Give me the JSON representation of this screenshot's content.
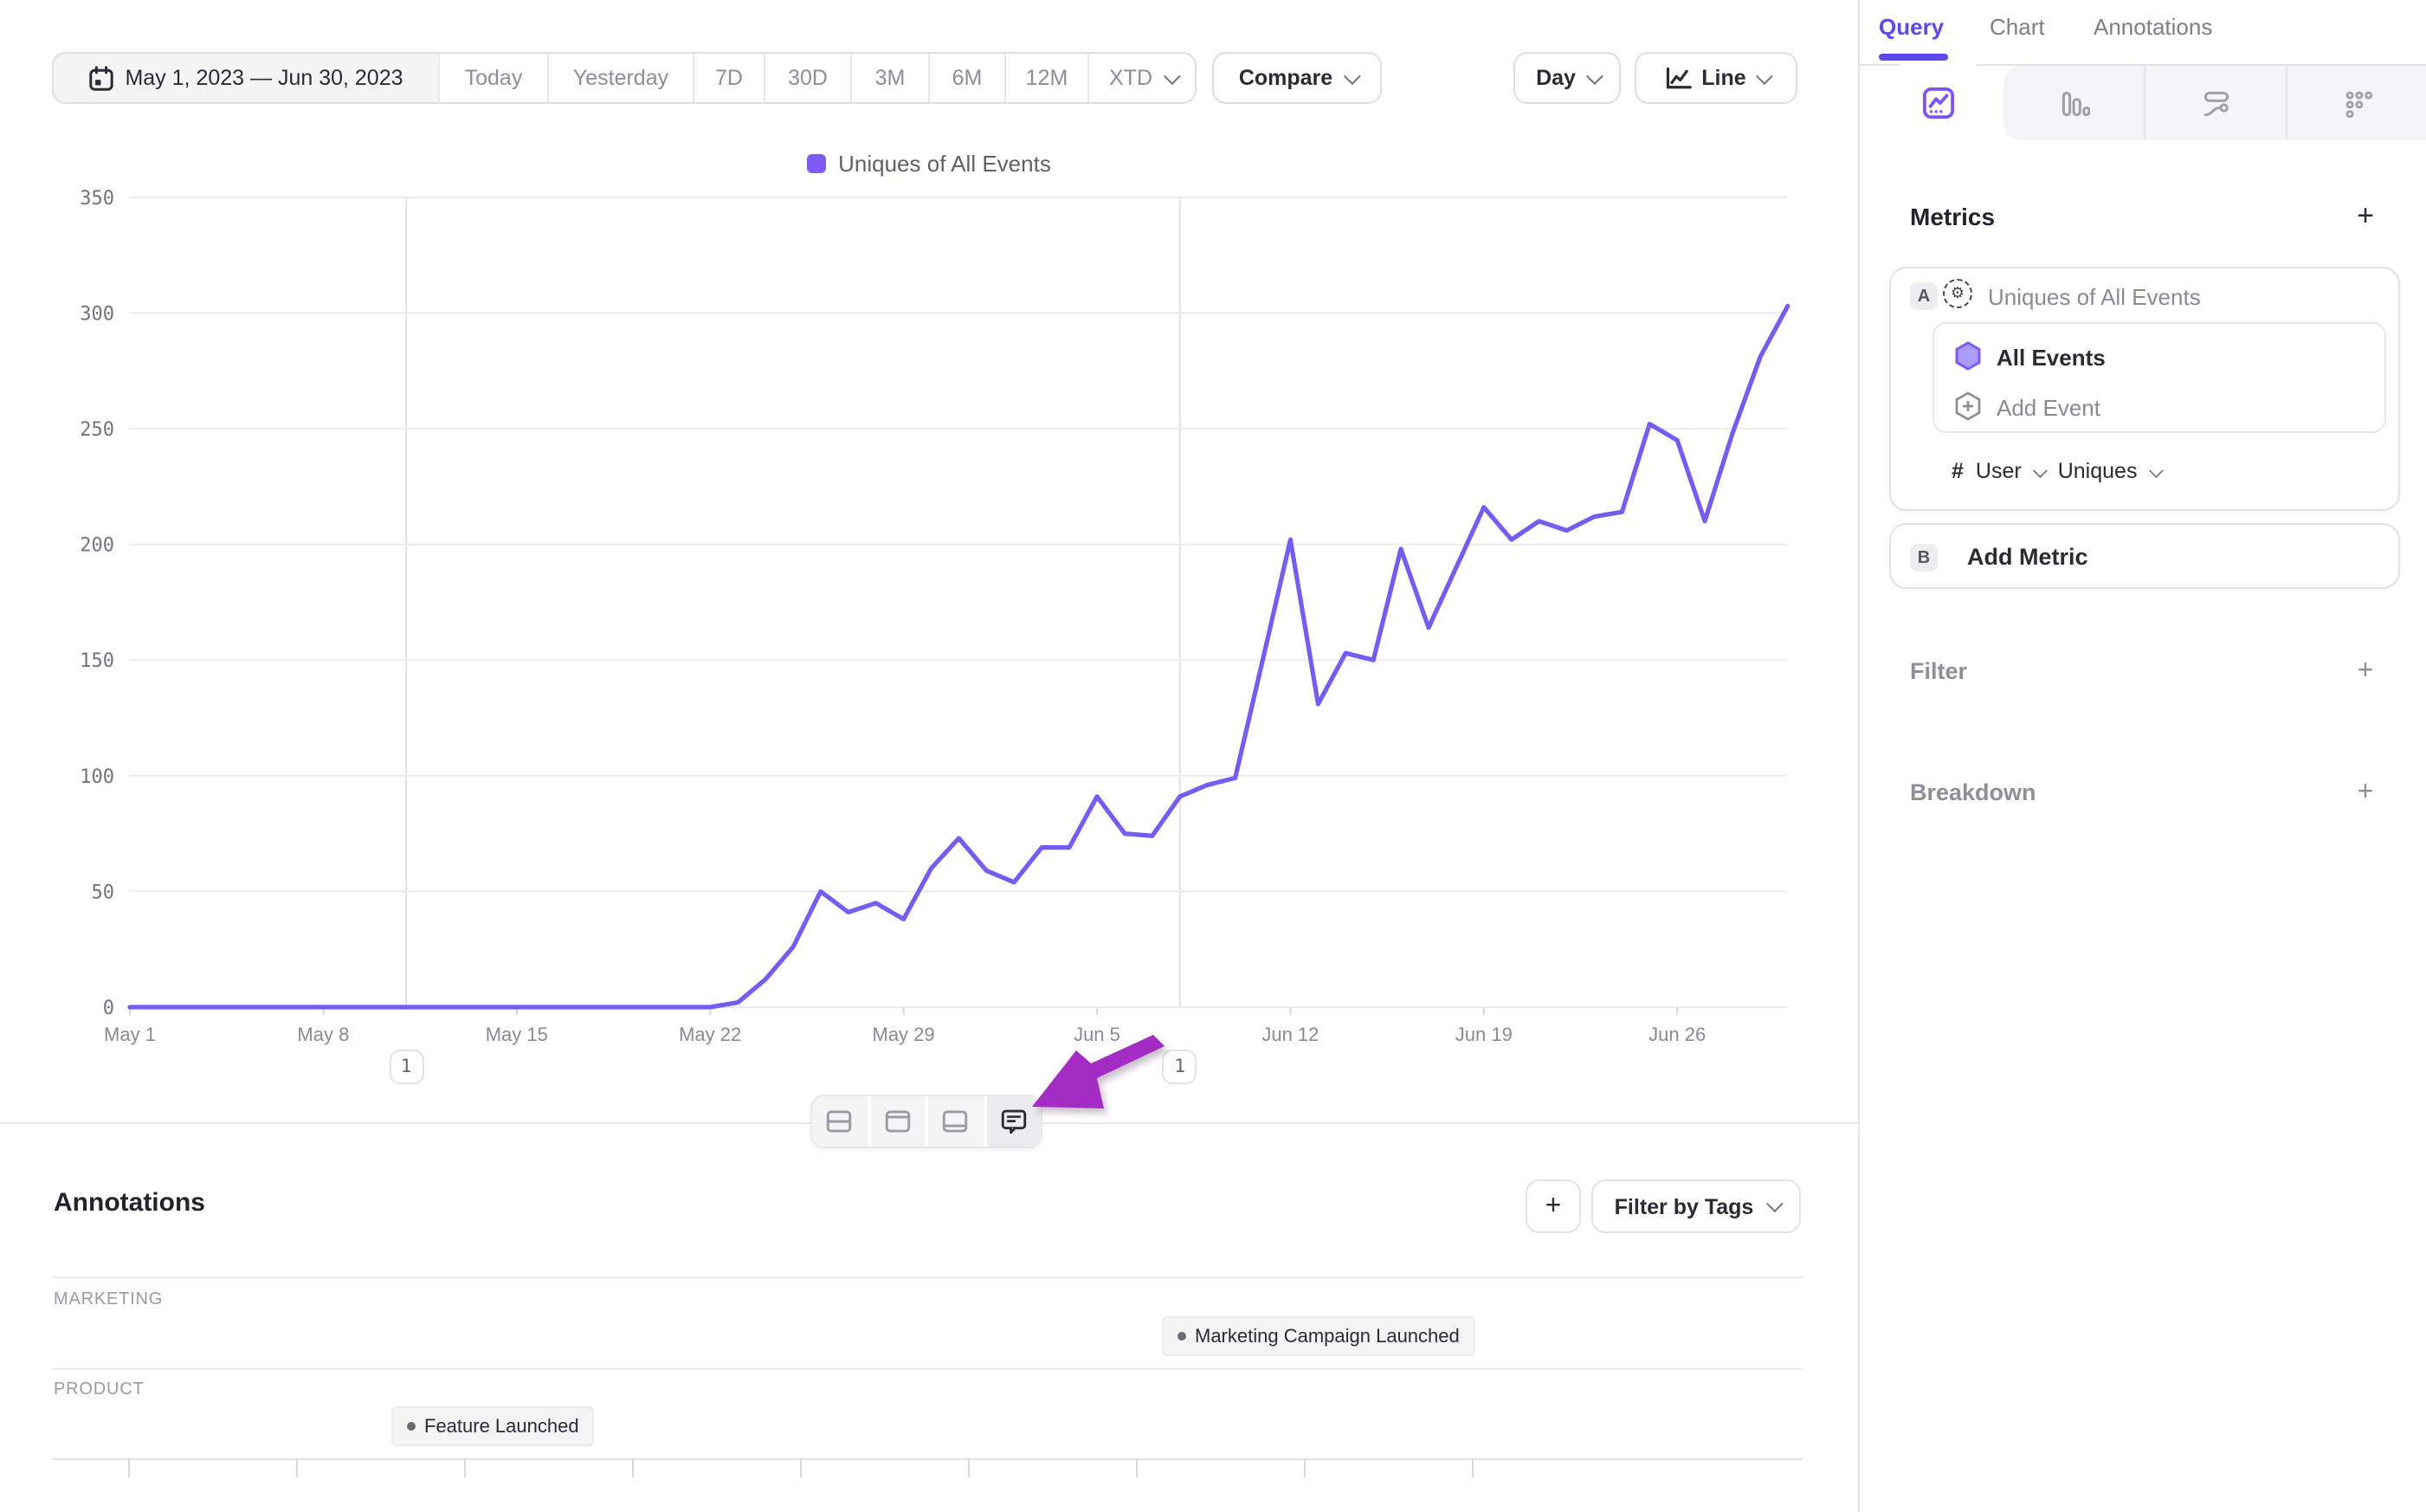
{
  "toolbar": {
    "date_range": "May 1, 2023 — Jun 30, 2023",
    "presets": [
      "Today",
      "Yesterday",
      "7D",
      "30D",
      "3M",
      "6M",
      "12M"
    ],
    "xtd_label": "XTD",
    "compare_label": "Compare",
    "granularity_label": "Day",
    "chart_type_label": "Line"
  },
  "legend": {
    "label": "Uniques of All Events",
    "color": "#7c5cf5"
  },
  "chart_data": {
    "type": "line",
    "series_name": "Uniques of All Events",
    "x": [
      "May 1",
      "May 2",
      "May 3",
      "May 4",
      "May 5",
      "May 6",
      "May 7",
      "May 8",
      "May 9",
      "May 10",
      "May 11",
      "May 12",
      "May 13",
      "May 14",
      "May 15",
      "May 16",
      "May 17",
      "May 18",
      "May 19",
      "May 20",
      "May 21",
      "May 22",
      "May 23",
      "May 24",
      "May 25",
      "May 26",
      "May 27",
      "May 28",
      "May 29",
      "May 30",
      "May 31",
      "Jun 1",
      "Jun 2",
      "Jun 3",
      "Jun 4",
      "Jun 5",
      "Jun 6",
      "Jun 7",
      "Jun 8",
      "Jun 9",
      "Jun 10",
      "Jun 11",
      "Jun 12",
      "Jun 13",
      "Jun 14",
      "Jun 15",
      "Jun 16",
      "Jun 17",
      "Jun 18",
      "Jun 19",
      "Jun 20",
      "Jun 21",
      "Jun 22",
      "Jun 23",
      "Jun 24",
      "Jun 25",
      "Jun 26",
      "Jun 27",
      "Jun 28",
      "Jun 29",
      "Jun 30"
    ],
    "values": [
      0,
      0,
      0,
      0,
      0,
      0,
      0,
      0,
      0,
      0,
      0,
      0,
      0,
      0,
      0,
      0,
      0,
      0,
      0,
      0,
      0,
      0,
      2,
      12,
      26,
      50,
      41,
      45,
      38,
      60,
      73,
      59,
      54,
      69,
      69,
      91,
      75,
      74,
      91,
      96,
      99,
      150,
      202,
      131,
      153,
      150,
      198,
      164,
      190,
      216,
      202,
      210,
      206,
      212,
      214,
      252,
      245,
      210,
      248,
      281,
      303
    ],
    "ylim": [
      0,
      350
    ],
    "yticks": [
      0,
      50,
      100,
      150,
      200,
      250,
      300,
      350
    ],
    "x_tick_labels": [
      "May 1",
      "May 8",
      "May 15",
      "May 22",
      "May 29",
      "Jun 5",
      "Jun 12",
      "Jun 19",
      "Jun 26"
    ],
    "x_tick_indices": [
      0,
      7,
      14,
      21,
      28,
      35,
      42,
      49,
      56
    ],
    "line_color": "#755cf3",
    "grid": true,
    "legend_position": "top",
    "annotation_markers": [
      {
        "index": 10,
        "label": "1"
      },
      {
        "index": 38,
        "label": "1"
      }
    ]
  },
  "bottom_toolbar": {
    "icons": [
      "split-rows-layout",
      "top-panel-layout",
      "bottom-panel-layout",
      "annotations-comment"
    ],
    "active_index": 3
  },
  "cursor_arrow": {
    "color": "#a32cc4"
  },
  "annotations_panel": {
    "title": "Annotations",
    "add_button": "+",
    "filter_button": "Filter by Tags",
    "rows": [
      {
        "category": "MARKETING",
        "badge": "Marketing Campaign Launched"
      },
      {
        "category": "PRODUCT",
        "badge": "Feature Launched"
      }
    ]
  },
  "sidebar": {
    "tabs": [
      "Query",
      "Chart",
      "Annotations"
    ],
    "active_tab": "Query",
    "icon_tabs": [
      "insights",
      "funnels",
      "flows",
      "retention"
    ],
    "metrics": {
      "heading": "Metrics",
      "metric_a": {
        "badge": "A",
        "name": "Uniques of All Events",
        "event": "All Events",
        "add_event": "Add Event",
        "count_symbol": "#",
        "entity": "User",
        "aggregation": "Uniques"
      },
      "metric_b": {
        "badge": "B",
        "label": "Add Metric"
      }
    },
    "filter": {
      "label": "Filter"
    },
    "breakdown": {
      "label": "Breakdown"
    },
    "accent_color": "#5b48ee"
  }
}
